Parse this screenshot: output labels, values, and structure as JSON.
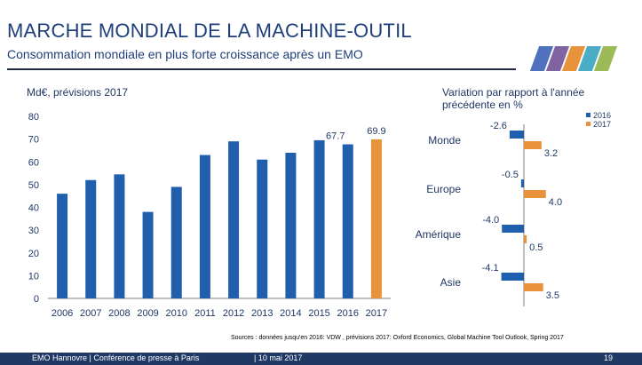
{
  "header": {
    "title": "MARCHE MONDIAL DE LA MACHINE-OUTIL",
    "subtitle": "Consommation mondiale en plus forte croissance après un EMO"
  },
  "colors": {
    "bar_actual": "#1f5fae",
    "bar_forecast": "#e8923c",
    "logo": [
      "#4f71be",
      "#8064a2",
      "#e8923c",
      "#4bacc6",
      "#9bbb59"
    ]
  },
  "chart_data": [
    {
      "type": "bar",
      "title": "Md€, prévisions 2017",
      "categories": [
        "2006",
        "2007",
        "2008",
        "2009",
        "2010",
        "2011",
        "2012",
        "2013",
        "2014",
        "2015",
        "2016",
        "2017"
      ],
      "values": [
        46,
        52,
        54.5,
        38,
        49,
        63,
        69,
        61,
        64,
        69.5,
        67.7,
        69.9
      ],
      "forecast_index": 11,
      "data_labels": {
        "10": "67.7",
        "11": "69.9"
      },
      "ylim": [
        0,
        80
      ],
      "yticks": [
        0,
        10,
        20,
        30,
        40,
        50,
        60,
        70,
        80
      ],
      "grid": false
    },
    {
      "type": "bar",
      "orientation": "horizontal",
      "title": "Variation par rapport à l'année précédente en %",
      "categories": [
        "Monde",
        "Europe",
        "Amérique",
        "Asie"
      ],
      "series": [
        {
          "name": "2016",
          "values": [
            -2.6,
            -0.5,
            -4.0,
            -4.1
          ],
          "labels": [
            "-2.6",
            "-0.5",
            "-4.0",
            "-4.1"
          ]
        },
        {
          "name": "2017",
          "values": [
            3.2,
            4.0,
            0.5,
            3.5
          ],
          "labels": [
            "3.2",
            "4.0",
            "0.5",
            "3.5"
          ]
        }
      ],
      "legend": "top-right"
    }
  ],
  "sources": "Sources : données jusqu'en 2016: VDW , prévisions 2017: Oxford Economics, Global Machine Tool Outlook, Spring 2017",
  "footer": {
    "left": "EMO Hannovre | Conférence de presse à Paris",
    "date": "| 10 mai 2017",
    "page": "19"
  }
}
